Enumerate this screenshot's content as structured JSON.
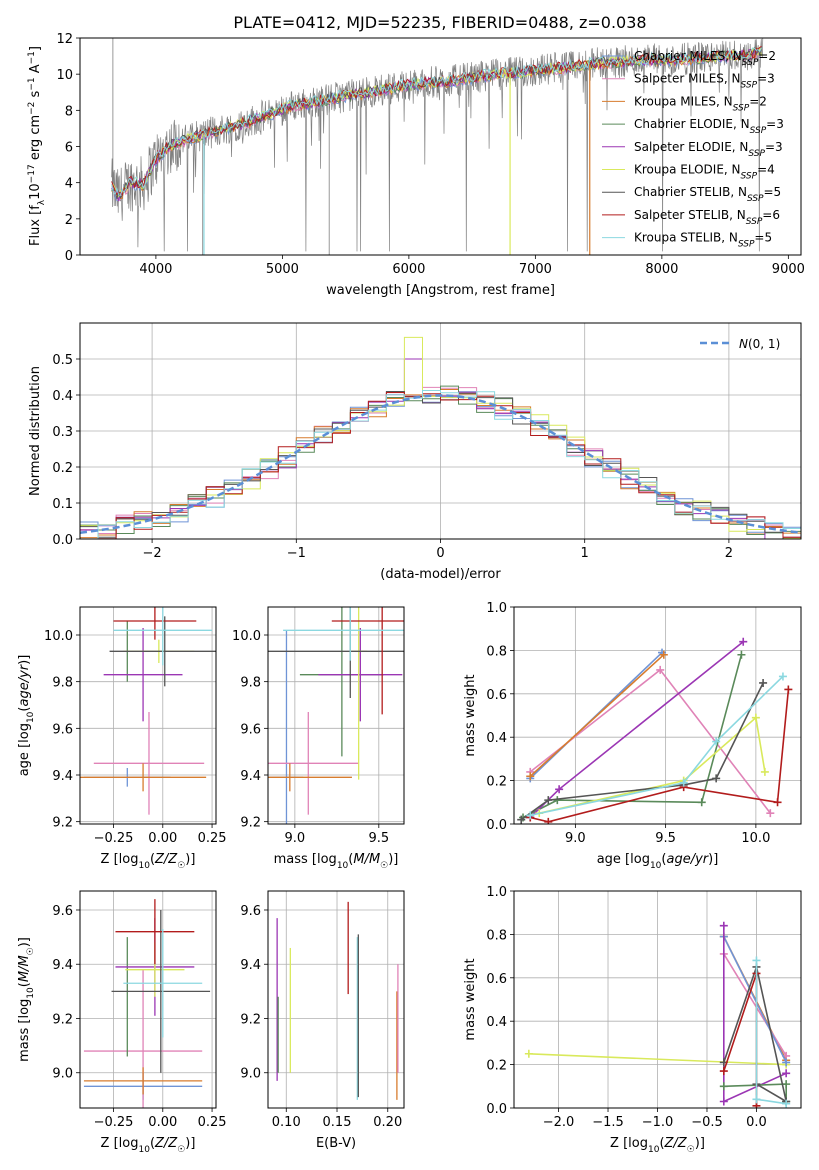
{
  "colors": {
    "Chabrier MILES": "#6f94d6",
    "Salpeter MILES": "#e083b7",
    "Kroupa MILES": "#d77c2e",
    "Chabrier ELODIE": "#5a8a5a",
    "Salpeter ELODIE": "#9b36b4",
    "Kroupa ELODIE": "#d9e95c",
    "Chabrier STELIB": "#555555",
    "Salpeter STELIB": "#b21c1c",
    "Kroupa STELIB": "#8bd8e0",
    "data": "#808080",
    "gaussian": "#5b8fd6"
  },
  "chart_data": [
    {
      "id": "spectrum",
      "type": "line",
      "title": "PLATE=0412, MJD=52235, FIBERID=0488, z=0.038",
      "xlabel": "wavelength [Angstrom, rest frame]",
      "ylabel": "Flux [f_λ10^-17 erg cm^-2 s^-1 A^-1]",
      "xlim": [
        3400,
        9100
      ],
      "ylim": [
        0,
        12
      ],
      "xticks": [
        4000,
        5000,
        6000,
        7000,
        8000,
        9000
      ],
      "yticks": [
        0,
        2,
        4,
        6,
        8,
        10,
        12
      ],
      "grid": false,
      "legend_position": "right",
      "legend": [
        {
          "label": "Chabrier MILES, N",
          "sub": "SSP",
          "suffix": "=2"
        },
        {
          "label": "Salpeter MILES, N",
          "sub": "SSP",
          "suffix": "=3"
        },
        {
          "label": "Kroupa MILES, N",
          "sub": "SSP",
          "suffix": "=2"
        },
        {
          "label": "Chabrier ELODIE, N",
          "sub": "SSP",
          "suffix": "=3"
        },
        {
          "label": "Salpeter ELODIE, N",
          "sub": "SSP",
          "suffix": "=3"
        },
        {
          "label": "Kroupa ELODIE, N",
          "sub": "SSP",
          "suffix": "=4"
        },
        {
          "label": "Chabrier STELIB, N",
          "sub": "SSP",
          "suffix": "=5"
        },
        {
          "label": "Salpeter STELIB, N",
          "sub": "SSP",
          "suffix": "=6"
        },
        {
          "label": "Kroupa STELIB, N",
          "sub": "SSP",
          "suffix": "=5"
        }
      ],
      "continuum": {
        "x": [
          3650,
          3700,
          3800,
          3900,
          4000,
          4100,
          4200,
          4300,
          4500,
          4700,
          4900,
          5100,
          5300,
          5500,
          5700,
          5900,
          6100,
          6300,
          6500,
          6700,
          6900,
          7100,
          7300,
          7500,
          7700,
          7900,
          8100,
          8300,
          8500,
          8700,
          8800
        ],
        "y": [
          3.8,
          3.2,
          4.0,
          3.9,
          5.3,
          6.0,
          6.3,
          6.5,
          6.9,
          7.3,
          7.8,
          8.3,
          8.5,
          8.8,
          9.0,
          9.3,
          9.5,
          9.6,
          9.8,
          10.0,
          10.1,
          10.3,
          10.4,
          10.6,
          10.7,
          10.8,
          10.8,
          10.9,
          11.0,
          11.1,
          11.3
        ]
      }
    },
    {
      "id": "residuals",
      "type": "bar",
      "xlabel": "(data-model)/error",
      "ylabel": "Normed distribution",
      "xlim": [
        -2.5,
        2.5
      ],
      "ylim": [
        0,
        0.6
      ],
      "xticks": [
        -2,
        -1,
        0,
        1,
        2
      ],
      "yticks": [
        0.0,
        0.1,
        0.2,
        0.3,
        0.4,
        0.5
      ],
      "grid": true,
      "legend": {
        "label": "N(0,1)",
        "position": "top-right"
      },
      "bins": {
        "start": -2.5,
        "width": 0.125,
        "count": 40
      },
      "peaks": {
        "Kroupa ELODIE": [
          -0.25,
          0.56
        ],
        "Salpeter ELODIE": [
          -0.25,
          0.5
        ]
      }
    },
    {
      "id": "age-vs-Z",
      "type": "scatter",
      "xlabel": "Z [log10(Z/Z☉)]",
      "ylabel": "age  [log10(age/yr)]",
      "xlim": [
        -0.42,
        0.27
      ],
      "ylim": [
        9.19,
        10.12
      ],
      "xticks": [
        -0.25,
        0.0,
        0.25
      ],
      "xtick_labels": [
        "−0.25",
        "0.00",
        "0.25"
      ],
      "yticks": [
        9.2,
        9.4,
        9.6,
        9.8,
        10.0
      ],
      "grid": true,
      "points": [
        {
          "model": "Chabrier MILES",
          "x": -0.18,
          "y": 9.39,
          "xerr": 0.22,
          "yerr": 0.04
        },
        {
          "model": "Salpeter MILES",
          "x": -0.07,
          "y": 9.45,
          "xerr": 0.28,
          "yerr": 0.22
        },
        {
          "model": "Kroupa MILES",
          "x": -0.1,
          "y": 9.39,
          "xerr": 0.32,
          "yerr": 0.06
        },
        {
          "model": "Chabrier ELODIE",
          "x": -0.18,
          "y": 9.93,
          "xerr": 0.0,
          "yerr": 0.13
        },
        {
          "model": "Salpeter ELODIE",
          "x": -0.1,
          "y": 9.83,
          "xerr": 0.2,
          "yerr": 0.2
        },
        {
          "model": "Kroupa ELODIE",
          "x": -0.02,
          "y": 9.93,
          "xerr": 0.18,
          "yerr": 0.05
        },
        {
          "model": "Chabrier STELIB",
          "x": 0.01,
          "y": 9.93,
          "xerr": 0.28,
          "yerr": 0.15
        },
        {
          "model": "Salpeter STELIB",
          "x": -0.04,
          "y": 10.06,
          "xerr": 0.21,
          "yerr": 0.08
        },
        {
          "model": "Kroupa STELIB",
          "x": 0.0,
          "y": 10.02,
          "xerr": 0.25,
          "yerr": 0.15
        }
      ]
    },
    {
      "id": "age-vs-mass",
      "type": "scatter",
      "xlabel": "mass [log10(M/M☉)]",
      "xlim": [
        8.84,
        9.65
      ],
      "ylim": [
        9.19,
        10.12
      ],
      "xticks": [
        9.0,
        9.5
      ],
      "yticks": [
        9.2,
        9.4,
        9.6,
        9.8,
        10.0
      ],
      "grid": true,
      "points": [
        {
          "model": "Chabrier MILES",
          "x": 8.95,
          "y": 9.39,
          "xerr": 0.1,
          "yerr": 0.63
        },
        {
          "model": "Salpeter MILES",
          "x": 9.08,
          "y": 9.45,
          "xerr": 0.3,
          "yerr": 0.22
        },
        {
          "model": "Kroupa MILES",
          "x": 8.97,
          "y": 9.39,
          "xerr": 0.37,
          "yerr": 0.06
        },
        {
          "model": "Chabrier ELODIE",
          "x": 9.28,
          "y": 9.83,
          "xerr": 0.25,
          "yerr": 0.35
        },
        {
          "model": "Salpeter ELODIE",
          "x": 9.39,
          "y": 9.83,
          "xerr": 0.25,
          "yerr": 0.2
        },
        {
          "model": "Kroupa ELODIE",
          "x": 9.38,
          "y": 9.93,
          "xerr": 0.05,
          "yerr": 0.55
        },
        {
          "model": "Chabrier STELIB",
          "x": 9.33,
          "y": 9.93,
          "xerr": 0.5,
          "yerr": 0.2
        },
        {
          "model": "Salpeter STELIB",
          "x": 9.52,
          "y": 10.06,
          "xerr": 0.3,
          "yerr": 0.4
        },
        {
          "model": "Kroupa STELIB",
          "x": 9.33,
          "y": 10.02,
          "xerr": 0.4,
          "yerr": 0.13
        }
      ]
    },
    {
      "id": "weight-vs-age",
      "type": "line",
      "xlabel": "age  [log10(age/yr)]",
      "ylabel": "mass weight",
      "xlim": [
        8.66,
        10.25
      ],
      "ylim": [
        0.0,
        1.0
      ],
      "xticks": [
        9.0,
        9.5,
        10.0
      ],
      "yticks": [
        0.0,
        0.2,
        0.4,
        0.6,
        0.8,
        1.0
      ],
      "grid": true,
      "series": [
        {
          "model": "Chabrier MILES",
          "x": [
            8.75,
            9.48
          ],
          "y": [
            0.21,
            0.79
          ]
        },
        {
          "model": "Salpeter MILES",
          "x": [
            8.75,
            9.47,
            10.08
          ],
          "y": [
            0.24,
            0.71,
            0.05
          ]
        },
        {
          "model": "Kroupa MILES",
          "x": [
            8.75,
            9.49
          ],
          "y": [
            0.22,
            0.78
          ]
        },
        {
          "model": "Chabrier ELODIE",
          "x": [
            8.71,
            8.9,
            9.7,
            9.92
          ],
          "y": [
            0.03,
            0.11,
            0.1,
            0.78
          ]
        },
        {
          "model": "Salpeter ELODIE",
          "x": [
            8.75,
            8.91,
            9.93
          ],
          "y": [
            0.03,
            0.16,
            0.84
          ]
        },
        {
          "model": "Kroupa ELODIE",
          "x": [
            8.8,
            9.6,
            10.0,
            10.05
          ],
          "y": [
            0.05,
            0.2,
            0.49,
            0.24
          ]
        },
        {
          "model": "Chabrier STELIB",
          "x": [
            8.7,
            8.85,
            9.6,
            9.78,
            10.04
          ],
          "y": [
            0.02,
            0.11,
            0.18,
            0.21,
            0.65
          ]
        },
        {
          "model": "Salpeter STELIB",
          "x": [
            8.75,
            8.85,
            9.6,
            10.12,
            10.18
          ],
          "y": [
            0.03,
            0.01,
            0.17,
            0.1,
            0.62
          ]
        },
        {
          "model": "Kroupa STELIB",
          "x": [
            8.75,
            9.6,
            9.78,
            10.15
          ],
          "y": [
            0.04,
            0.19,
            0.38,
            0.68
          ]
        }
      ]
    },
    {
      "id": "mass-vs-Z",
      "type": "scatter",
      "xlabel": "Z [log10(Z/Z☉)]",
      "ylabel": "mass [log10(M/M☉)]",
      "xlim": [
        -0.42,
        0.27
      ],
      "ylim": [
        8.87,
        9.67
      ],
      "xticks": [
        -0.25,
        0.0,
        0.25
      ],
      "xtick_labels": [
        "−0.25",
        "0.00",
        "0.25"
      ],
      "yticks": [
        9.0,
        9.2,
        9.4,
        9.6
      ],
      "grid": true,
      "points": [
        {
          "model": "Chabrier MILES",
          "x": -0.1,
          "y": 8.95,
          "xerr": 0.3,
          "yerr": 0.05
        },
        {
          "model": "Salpeter MILES",
          "x": -0.1,
          "y": 9.08,
          "xerr": 0.3,
          "yerr": 0.3
        },
        {
          "model": "Kroupa MILES",
          "x": -0.1,
          "y": 8.97,
          "xerr": 0.3,
          "yerr": 0.05
        },
        {
          "model": "Chabrier ELODIE",
          "x": -0.18,
          "y": 9.28,
          "xerr": 0.0,
          "yerr": 0.22
        },
        {
          "model": "Salpeter ELODIE",
          "x": -0.04,
          "y": 9.39,
          "xerr": 0.2,
          "yerr": 0.18
        },
        {
          "model": "Kroupa ELODIE",
          "x": -0.04,
          "y": 9.38,
          "xerr": 0.15,
          "yerr": 0.1
        },
        {
          "model": "Chabrier STELIB",
          "x": -0.01,
          "y": 9.3,
          "xerr": 0.25,
          "yerr": 0.3
        },
        {
          "model": "Salpeter STELIB",
          "x": -0.04,
          "y": 9.52,
          "xerr": 0.2,
          "yerr": 0.12
        },
        {
          "model": "Kroupa STELIB",
          "x": 0.0,
          "y": 9.33,
          "xerr": 0.2,
          "yerr": 0.2
        }
      ]
    },
    {
      "id": "mass-vs-EBV",
      "type": "scatter",
      "xlabel": "E(B-V)",
      "xlim": [
        0.082,
        0.216
      ],
      "ylim": [
        8.87,
        9.67
      ],
      "xticks": [
        0.1,
        0.15,
        0.2
      ],
      "xtick_labels": [
        "0.10",
        "0.15",
        "0.20"
      ],
      "yticks": [
        9.0,
        9.2,
        9.4,
        9.6
      ],
      "grid": true,
      "points": [
        {
          "model": "Salpeter ELODIE",
          "x": 0.091,
          "y": 9.27,
          "xerr": 0.0,
          "yerr": 0.3
        },
        {
          "model": "Chabrier ELODIE",
          "x": 0.092,
          "y": 9.14,
          "xerr": 0.0,
          "yerr": 0.14
        },
        {
          "model": "Kroupa ELODIE",
          "x": 0.104,
          "y": 9.23,
          "xerr": 0.0,
          "yerr": 0.23
        },
        {
          "model": "Salpeter STELIB",
          "x": 0.161,
          "y": 9.46,
          "xerr": 0.0,
          "yerr": 0.17
        },
        {
          "model": "Kroupa STELIB",
          "x": 0.17,
          "y": 9.2,
          "xerr": 0.0,
          "yerr": 0.3
        },
        {
          "model": "Chabrier STELIB",
          "x": 0.171,
          "y": 9.21,
          "xerr": 0.0,
          "yerr": 0.3
        },
        {
          "model": "Kroupa MILES",
          "x": 0.209,
          "y": 9.1,
          "xerr": 0.0,
          "yerr": 0.2
        },
        {
          "model": "Salpeter MILES",
          "x": 0.21,
          "y": 9.2,
          "xerr": 0.0,
          "yerr": 0.2
        }
      ]
    },
    {
      "id": "weight-vs-Z",
      "type": "line",
      "xlabel": "Z [log10(Z/Z☉)]",
      "ylabel": "mass weight",
      "xlim": [
        -2.45,
        0.45
      ],
      "ylim": [
        0.0,
        1.0
      ],
      "xticks": [
        -2.0,
        -1.5,
        -1.0,
        -0.5,
        0.0
      ],
      "xtick_labels": [
        "−2.0",
        "−1.5",
        "−1.0",
        "−0.5",
        "0.0"
      ],
      "yticks": [
        0.0,
        0.2,
        0.4,
        0.6,
        0.8,
        1.0
      ],
      "grid": true,
      "series": [
        {
          "model": "Kroupa ELODIE",
          "x": [
            -2.3,
            0.3
          ],
          "y": [
            0.25,
            0.2
          ]
        },
        {
          "model": "Kroupa MILES",
          "x": [
            -0.33,
            0.3
          ],
          "y": [
            0.79,
            0.22
          ]
        },
        {
          "model": "Salpeter MILES",
          "x": [
            -0.33,
            0.3
          ],
          "y": [
            0.71,
            0.24
          ]
        },
        {
          "model": "Chabrier MILES",
          "x": [
            -0.33,
            0.3
          ],
          "y": [
            0.79,
            0.21
          ]
        },
        {
          "model": "Salpeter ELODIE",
          "x": [
            -0.33,
            -0.33,
            0.3
          ],
          "y": [
            0.84,
            0.03,
            0.16
          ]
        },
        {
          "model": "Chabrier ELODIE",
          "x": [
            -0.33,
            0.3,
            0.3
          ],
          "y": [
            0.1,
            0.11,
            0.03
          ]
        },
        {
          "model": "Chabrier STELIB",
          "x": [
            -0.33,
            0.0,
            0.3,
            0.0
          ],
          "y": [
            0.21,
            0.65,
            0.03,
            0.11
          ]
        },
        {
          "model": "Salpeter STELIB",
          "x": [
            -0.33,
            0.0,
            0.0
          ],
          "y": [
            0.17,
            0.62,
            0.01
          ]
        },
        {
          "model": "Kroupa STELIB",
          "x": [
            0.0,
            0.0,
            0.3
          ],
          "y": [
            0.68,
            0.04,
            0.02
          ]
        }
      ]
    }
  ]
}
